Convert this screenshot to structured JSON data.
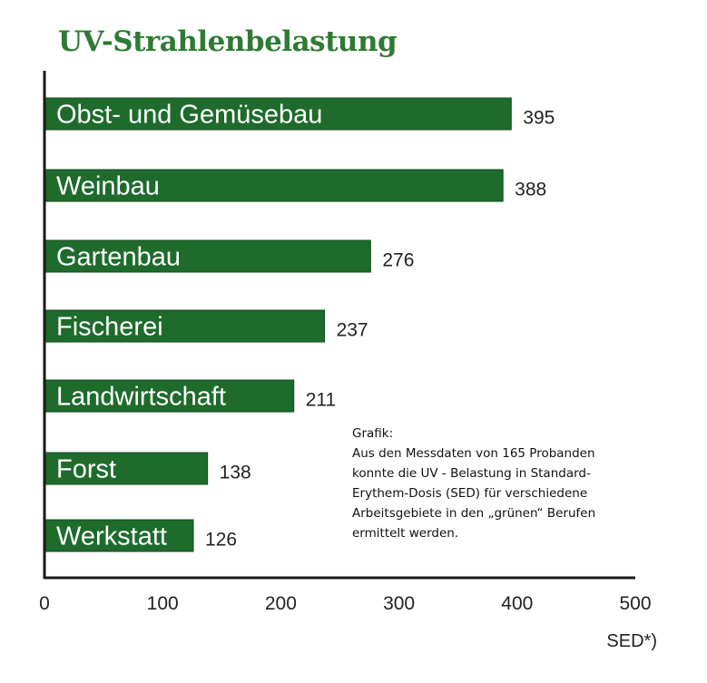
{
  "chart_data": {
    "type": "bar",
    "orientation": "horizontal",
    "title": "UV-Strahlenbelastung",
    "categories": [
      "Obst- und Gemüsebau",
      "Weinbau",
      "Gartenbau",
      "Fischerei",
      "Landwirtschaft",
      "Forst",
      "Werkstatt"
    ],
    "values": [
      395,
      388,
      276,
      237,
      211,
      138,
      126
    ],
    "xlabel": "SED*)",
    "ylabel": "",
    "xlim": [
      0,
      500
    ],
    "xticks": [
      0,
      100,
      200,
      300,
      400,
      500
    ],
    "grid": false,
    "colors": {
      "bar": "#1e6b2c",
      "bar_outline": "#134a1d",
      "title": "#2f7a34",
      "axis": "#1a1a1a"
    }
  },
  "note": {
    "lines": [
      "Grafik:",
      "Aus den Messdaten von 165 Probanden",
      "konnte die UV - Belastung in Standard-",
      "Erythem-Dosis (SED) für verschiedene",
      "Arbeitsgebiete in den „grünen“ Berufen",
      "ermittelt werden."
    ]
  }
}
